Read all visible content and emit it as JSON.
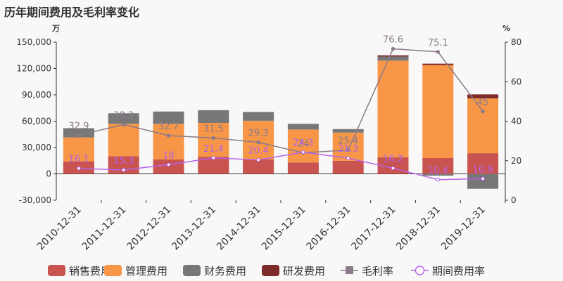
{
  "title": "历年期间费用及毛利率变化",
  "chart_data": {
    "type": "bar",
    "title": "历年期间费用及毛利率变化",
    "left_unit": "万",
    "right_unit": "%",
    "categories": [
      "2010-12-31",
      "2011-12-31",
      "2012-12-31",
      "2013-12-31",
      "2014-12-31",
      "2015-12-31",
      "2016-12-31",
      "2017-12-31",
      "2018-12-31",
      "2019-12-31"
    ],
    "series": [
      {
        "name": "销售费用",
        "color": "#c9534f",
        "values": [
          14000,
          20000,
          16500,
          19500,
          16500,
          13000,
          15000,
          19000,
          18000,
          23500
        ]
      },
      {
        "name": "管理费用",
        "color": "#f79646",
        "values": [
          27500,
          37000,
          40500,
          38500,
          44000,
          37500,
          32000,
          110000,
          106000,
          62500
        ]
      },
      {
        "name": "财务费用",
        "color": "#777777",
        "values": [
          10500,
          12000,
          14000,
          14500,
          10000,
          6500,
          4000,
          4500,
          -2000,
          -17000
        ]
      },
      {
        "name": "研发费用",
        "color": "#7d2a2a",
        "values": [
          0,
          0,
          0,
          0,
          0,
          0,
          0,
          1500,
          1500,
          4500
        ]
      }
    ],
    "line_series": [
      {
        "name": "毛利率",
        "color": "#8a7a8a",
        "values": [
          32.9,
          38.3,
          32.7,
          31.5,
          29.3,
          24.0,
          25.4,
          76.6,
          75.1,
          45
        ]
      },
      {
        "name": "期间费用率",
        "color": "#b563e6",
        "values": [
          16.1,
          15.3,
          18,
          21.4,
          20.4,
          24.3,
          21.3,
          16.2,
          10.4,
          10.9
        ]
      }
    ],
    "line_labels": {
      "gross_margin": [
        "32.9",
        "38.3",
        "32.7",
        "31.5",
        "29.3",
        "24",
        "25.4",
        "76.6",
        "75.1",
        "45"
      ],
      "expense_ratio": [
        "16.1",
        "15.3",
        "18",
        "21.4",
        "20.4",
        "24.3",
        "21.3",
        "16.2",
        "10.4",
        "10.9"
      ]
    },
    "left_axis": {
      "min": -30000,
      "max": 150000,
      "ticks": [
        "-30,000",
        "0",
        "30,000",
        "60,000",
        "90,000",
        "120,000",
        "150,000"
      ]
    },
    "right_axis": {
      "min": 0,
      "max": 80,
      "ticks": [
        "0",
        "20",
        "40",
        "60",
        "80"
      ]
    },
    "legend": [
      "销售费用",
      "管理费用",
      "财务费用",
      "研发费用",
      "毛利率",
      "期间费用率"
    ]
  }
}
